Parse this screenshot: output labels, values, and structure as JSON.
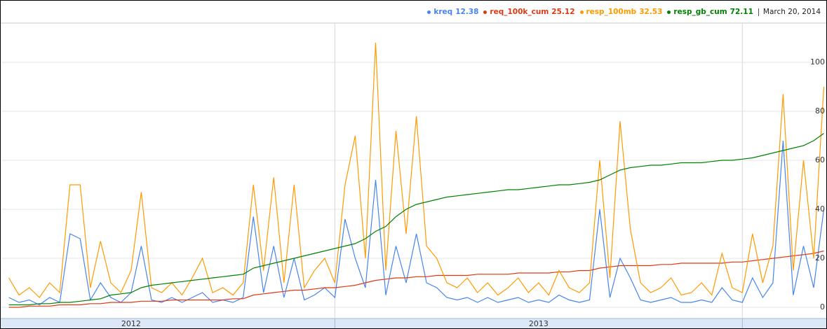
{
  "chart_data": {
    "type": "line",
    "date": "March 20, 2014",
    "x": [
      2012.2,
      2012.225,
      2012.25,
      2012.275,
      2012.3,
      2012.325,
      2012.35,
      2012.375,
      2012.4,
      2012.425,
      2012.45,
      2012.475,
      2012.5,
      2012.525,
      2012.55,
      2012.575,
      2012.6,
      2012.625,
      2012.65,
      2012.675,
      2012.7,
      2012.725,
      2012.75,
      2012.775,
      2012.8,
      2012.825,
      2012.85,
      2012.875,
      2012.9,
      2012.925,
      2012.95,
      2012.975,
      2013,
      2013.025,
      2013.05,
      2013.075,
      2013.1,
      2013.125,
      2013.15,
      2013.175,
      2013.2,
      2013.225,
      2013.25,
      2013.275,
      2013.3,
      2013.325,
      2013.35,
      2013.375,
      2013.4,
      2013.425,
      2013.45,
      2013.475,
      2013.5,
      2013.525,
      2013.55,
      2013.575,
      2013.6,
      2013.625,
      2013.65,
      2013.675,
      2013.7,
      2013.725,
      2013.75,
      2013.775,
      2013.8,
      2013.825,
      2013.85,
      2013.875,
      2013.9,
      2013.925,
      2013.95,
      2013.975,
      2014,
      2014.025,
      2014.05,
      2014.075,
      2014.1,
      2014.125,
      2014.15,
      2014.175,
      2014.2
    ],
    "series": [
      {
        "name": "kreq",
        "legend_value": 12.38,
        "color": "#4684ee",
        "values": [
          4,
          2,
          3,
          1,
          4,
          2,
          30,
          28,
          3,
          10,
          4,
          2,
          6,
          25,
          3,
          2,
          4,
          2,
          4,
          6,
          2,
          3,
          2,
          4,
          37,
          6,
          25,
          4,
          20,
          3,
          5,
          8,
          4,
          36,
          20,
          8,
          52,
          5,
          25,
          10,
          30,
          10,
          8,
          4,
          3,
          4,
          2,
          4,
          2,
          3,
          4,
          2,
          3,
          2,
          5,
          3,
          2,
          3,
          40,
          4,
          20,
          12,
          3,
          2,
          3,
          4,
          2,
          2,
          3,
          2,
          8,
          3,
          2,
          12,
          4,
          10,
          68,
          5,
          25,
          8,
          40
        ]
      },
      {
        "name": "req_100k_cum",
        "legend_value": 25.12,
        "color": "#dc3912",
        "values": [
          0,
          0,
          0.5,
          0.5,
          0.5,
          1,
          1,
          1,
          1.5,
          1.5,
          2,
          2,
          2,
          2.5,
          2.5,
          2.5,
          3,
          3,
          3,
          3,
          3,
          3,
          3.5,
          3.5,
          5,
          5.5,
          6,
          6.5,
          7,
          7,
          7.5,
          8,
          8,
          8.5,
          9,
          10,
          11,
          11.5,
          12,
          12,
          12.5,
          12.5,
          13,
          13,
          13,
          13,
          13.5,
          13.5,
          13.5,
          13.5,
          14,
          14,
          14,
          14,
          14.5,
          14.5,
          15,
          15,
          16,
          16.5,
          17,
          17,
          17,
          17,
          17.5,
          17.5,
          18,
          18,
          18,
          18,
          18,
          18.5,
          18.5,
          19,
          19.5,
          20,
          20.5,
          21,
          21.5,
          22,
          23
        ]
      },
      {
        "name": "resp_100mb",
        "legend_value": 32.53,
        "color": "#ff9900",
        "values": [
          12,
          5,
          8,
          4,
          10,
          6,
          50,
          50,
          8,
          27,
          10,
          6,
          15,
          47,
          8,
          6,
          10,
          5,
          12,
          20,
          6,
          8,
          5,
          10,
          50,
          15,
          53,
          10,
          50,
          8,
          15,
          20,
          10,
          50,
          70,
          20,
          108,
          15,
          72,
          30,
          78,
          25,
          20,
          10,
          8,
          12,
          6,
          10,
          5,
          8,
          12,
          6,
          10,
          5,
          15,
          8,
          6,
          10,
          60,
          12,
          76,
          32,
          10,
          6,
          8,
          12,
          5,
          6,
          10,
          5,
          22,
          8,
          6,
          30,
          10,
          25,
          87,
          15,
          60,
          20,
          90
        ]
      },
      {
        "name": "resp_gb_cum",
        "legend_value": 72.11,
        "color": "#008000",
        "values": [
          1,
          1,
          1,
          1.5,
          1.5,
          2,
          2,
          2.5,
          3,
          3.5,
          5,
          5.5,
          6,
          8,
          9,
          9.5,
          10,
          10.5,
          11,
          11.5,
          12,
          12.5,
          13,
          13.5,
          16,
          17,
          18,
          19,
          20,
          21,
          22,
          23,
          24,
          25,
          26,
          28,
          31,
          33,
          37,
          40,
          42,
          43,
          44,
          45,
          45.5,
          46,
          46.5,
          47,
          47.5,
          48,
          48,
          48.5,
          49,
          49.5,
          50,
          50,
          50.5,
          51,
          52,
          54,
          56,
          57,
          57.5,
          58,
          58,
          58.5,
          59,
          59,
          59,
          59.5,
          60,
          60,
          60.5,
          61,
          62,
          63,
          64,
          65,
          66,
          68,
          71
        ]
      }
    ],
    "xlim": [
      2012.18,
      2014.206
    ],
    "xticks": [
      {
        "value": 2012.5,
        "label": "2012"
      },
      {
        "value": 2013.5,
        "label": "2013"
      }
    ],
    "xgrid": [
      2013,
      2014
    ],
    "ylim": [
      0,
      116
    ],
    "yticks": [
      0,
      20,
      40,
      60,
      80,
      100
    ],
    "grid": true
  }
}
